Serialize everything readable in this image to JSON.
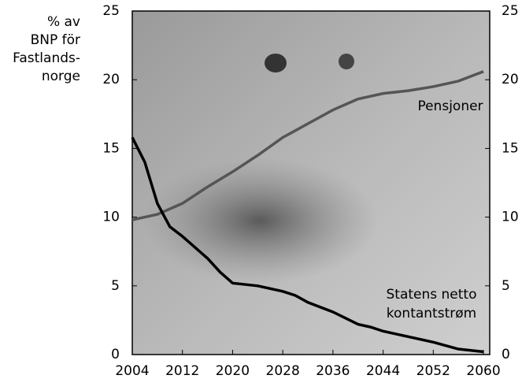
{
  "chart_data": {
    "type": "line",
    "ylabel": [
      "% av",
      "BNP för",
      "Fastlands-",
      "norge"
    ],
    "xlim": [
      2004,
      2061
    ],
    "xticks": [
      2004,
      2012,
      2020,
      2028,
      2036,
      2044,
      2052,
      2060
    ],
    "ylim": [
      0,
      25
    ],
    "yticks": [
      0,
      5,
      10,
      15,
      20,
      25
    ],
    "y2lim": [
      0,
      25
    ],
    "y2ticks": [
      0,
      5,
      10,
      15,
      20,
      25
    ],
    "series": [
      {
        "name": "Pensjoner",
        "color": "#555555",
        "x": [
          2004,
          2008,
          2012,
          2016,
          2020,
          2024,
          2028,
          2032,
          2036,
          2040,
          2044,
          2048,
          2052,
          2056,
          2060
        ],
        "values": [
          9.8,
          10.2,
          11.0,
          12.2,
          13.3,
          14.5,
          15.8,
          16.8,
          17.8,
          18.6,
          19.0,
          19.2,
          19.5,
          19.9,
          20.6
        ]
      },
      {
        "name": [
          "Statens netto",
          "kontantstrøm"
        ],
        "color": "#000000",
        "x": [
          2004,
          2006,
          2008,
          2010,
          2012,
          2014,
          2016,
          2018,
          2020,
          2022,
          2024,
          2026,
          2028,
          2030,
          2032,
          2036,
          2040,
          2042,
          2044,
          2048,
          2052,
          2056,
          2058,
          2060
        ],
        "values": [
          15.8,
          14.0,
          11.0,
          9.3,
          8.6,
          7.8,
          7.0,
          6.0,
          5.2,
          5.1,
          5.0,
          4.8,
          4.6,
          4.3,
          3.8,
          3.1,
          2.2,
          2.0,
          1.7,
          1.3,
          0.9,
          0.4,
          0.3,
          0.2
        ]
      }
    ]
  }
}
